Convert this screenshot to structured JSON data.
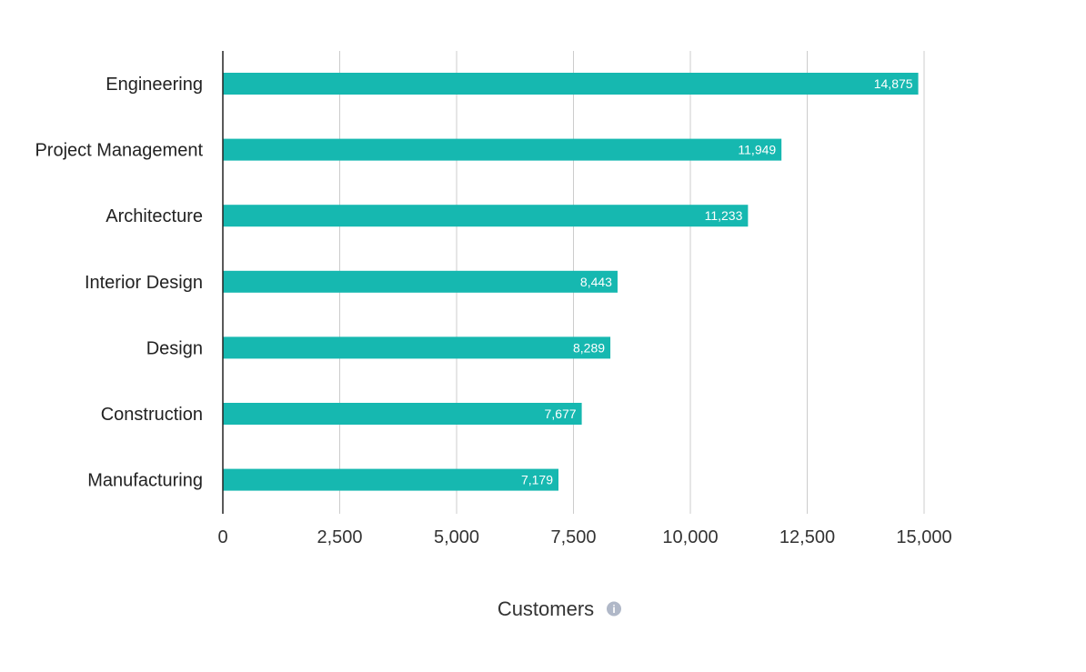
{
  "chart_data": {
    "type": "bar",
    "orientation": "horizontal",
    "categories": [
      "Engineering",
      "Project Management",
      "Architecture",
      "Interior Design",
      "Design",
      "Construction",
      "Manufacturing"
    ],
    "values": [
      14875,
      11949,
      11233,
      8443,
      8289,
      7677,
      7179
    ],
    "data_labels": [
      "14,875",
      "11,949",
      "11,233",
      "8,443",
      "8,289",
      "7,677",
      "7,179"
    ],
    "xlim": [
      0,
      15000
    ],
    "x_ticks": [
      0,
      2500,
      5000,
      7500,
      10000,
      12500,
      15000
    ],
    "x_tick_labels": [
      "0",
      "2,500",
      "5,000",
      "7,500",
      "10,000",
      "12,500",
      "15,000"
    ],
    "xlabel": "Customers",
    "grid": "vertical",
    "legend": "none"
  },
  "colors": {
    "bar": "#16b8b0",
    "grid": "#cccccc",
    "axis": "#222222",
    "info_icon": "#b0b8c8"
  },
  "icons": {
    "xlabel_info": "info-icon"
  }
}
